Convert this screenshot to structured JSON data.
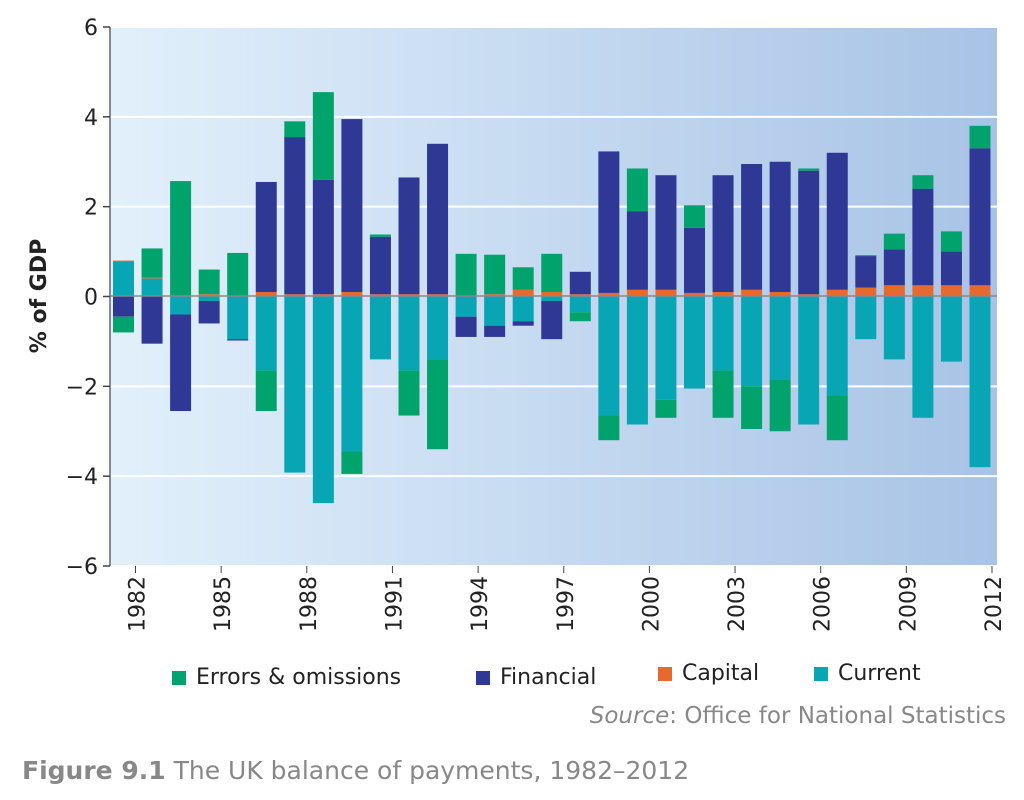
{
  "chart_data": {
    "type": "bar",
    "stacked": true,
    "title": "",
    "xlabel": "",
    "ylabel": "% of GDP",
    "ylim": [
      -6,
      6
    ],
    "yticks": [
      6,
      4,
      2,
      0,
      -2,
      -4,
      -6
    ],
    "ytick_labels": [
      "6",
      "4",
      "2",
      "0",
      "−2",
      "−4",
      "−6"
    ],
    "grid": true,
    "legend_position": "bottom",
    "categories": [
      1982,
      1983,
      1984,
      1985,
      1986,
      1987,
      1988,
      1989,
      1990,
      1991,
      1992,
      1993,
      1994,
      1995,
      1996,
      1997,
      1998,
      1999,
      2000,
      2001,
      2002,
      2003,
      2004,
      2005,
      2006,
      2007,
      2008,
      2009,
      2010,
      2011,
      2012
    ],
    "xtick_labels": [
      "1982",
      "1985",
      "1988",
      "1991",
      "1994",
      "1997",
      "2000",
      "2003",
      "2006",
      "2009",
      "2012"
    ],
    "series": [
      {
        "name": "Current",
        "color": "#08a6b5",
        "values": [
          0.78,
          0.4,
          -0.4,
          -0.1,
          -0.95,
          -1.65,
          -3.92,
          -4.6,
          -3.45,
          -1.4,
          -1.65,
          -1.4,
          -0.45,
          -0.65,
          -0.55,
          -0.1,
          -0.35,
          -2.65,
          -2.85,
          -2.3,
          -2.05,
          -1.65,
          -2.0,
          -1.85,
          -2.85,
          -2.2,
          -0.95,
          -1.4,
          -2.7,
          -1.45,
          -3.8
        ]
      },
      {
        "name": "Capital",
        "color": "#e8692e",
        "values": [
          0.02,
          0.02,
          0.02,
          0.05,
          0.02,
          0.1,
          0.05,
          0.05,
          0.1,
          0.05,
          0.05,
          0.05,
          0.02,
          0.05,
          0.15,
          0.1,
          0.05,
          0.08,
          0.15,
          0.15,
          0.08,
          0.1,
          0.15,
          0.1,
          0.05,
          0.15,
          0.2,
          0.25,
          0.25,
          0.25,
          0.25
        ]
      },
      {
        "name": "Financial",
        "color": "#303896",
        "values": [
          -0.45,
          -1.05,
          -2.15,
          -0.5,
          -0.03,
          2.45,
          3.5,
          2.55,
          3.85,
          1.28,
          2.6,
          3.35,
          -0.45,
          -0.25,
          -0.1,
          -0.85,
          0.5,
          3.15,
          1.75,
          2.55,
          1.45,
          2.6,
          2.8,
          2.9,
          2.75,
          3.05,
          0.7,
          0.8,
          2.15,
          0.75,
          3.05
        ]
      },
      {
        "name": "Errors & omissions",
        "color": "#00a36c",
        "values": [
          -0.35,
          0.65,
          2.55,
          0.55,
          0.95,
          -0.9,
          0.35,
          1.95,
          -0.5,
          0.05,
          -1.0,
          -2.0,
          0.93,
          0.88,
          0.5,
          0.85,
          -0.2,
          -0.55,
          0.95,
          -0.4,
          0.5,
          -1.05,
          -0.95,
          -1.15,
          0.05,
          -1.0,
          0.02,
          0.35,
          0.3,
          0.45,
          0.5
        ]
      }
    ],
    "legend": [
      "Errors & omissions",
      "Financial",
      "Capital",
      "Current"
    ]
  },
  "source": {
    "prefix": "Source",
    "text": ": Office for National Statistics"
  },
  "caption": {
    "label": "Figure 9.1",
    "text": " The UK balance of payments, 1982–2012"
  }
}
